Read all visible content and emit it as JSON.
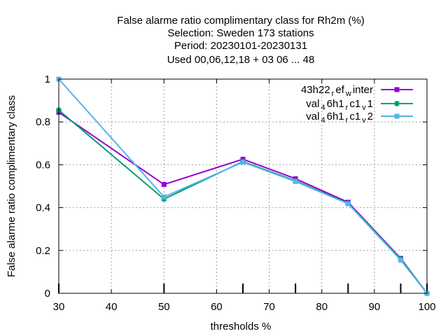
{
  "chart_data": {
    "type": "line",
    "title_lines": [
      "False alarme ratio complimentary class  for Rh2m (%)",
      "Selection: Sweden     173 stations",
      "Period: 20230101-20230131",
      "Used  00,06,12,18  + 03 06 ... 48"
    ],
    "xlabel": "thresholds %",
    "ylabel": "False alarme ratio complimentary class",
    "xlim": [
      30,
      100
    ],
    "ylim": [
      0,
      1
    ],
    "x_ticks": [
      30,
      40,
      50,
      60,
      70,
      80,
      90,
      100
    ],
    "y_ticks": [
      0,
      0.2,
      0.4,
      0.6,
      0.8,
      1
    ],
    "y_tick_labels": [
      "0",
      "0.2",
      "0.4",
      "0.6",
      "0.8",
      "1"
    ],
    "grid": true,
    "legend_position": "top-right",
    "x": [
      30,
      50,
      65,
      75,
      85,
      95,
      100
    ],
    "series": [
      {
        "name_parts": [
          "43h22",
          "r",
          "ef",
          "w",
          "inter"
        ],
        "color": "#9400d3",
        "marker": "square",
        "values": [
          0.845,
          0.508,
          0.626,
          0.535,
          0.425,
          0.163,
          0.0
        ]
      },
      {
        "name_parts": [
          "val",
          "4",
          "6h1",
          "r",
          "c1",
          "v",
          "1"
        ],
        "color": "#009e73",
        "marker": "star",
        "values": [
          0.855,
          0.44,
          0.615,
          0.525,
          0.42,
          0.16,
          0.0
        ]
      },
      {
        "name_parts": [
          "val",
          "4",
          "6h1",
          "r",
          "c1",
          "v",
          "2"
        ],
        "color": "#56b4e9",
        "marker": "square",
        "values": [
          1.0,
          0.45,
          0.612,
          0.522,
          0.418,
          0.155,
          0.0
        ]
      }
    ]
  }
}
